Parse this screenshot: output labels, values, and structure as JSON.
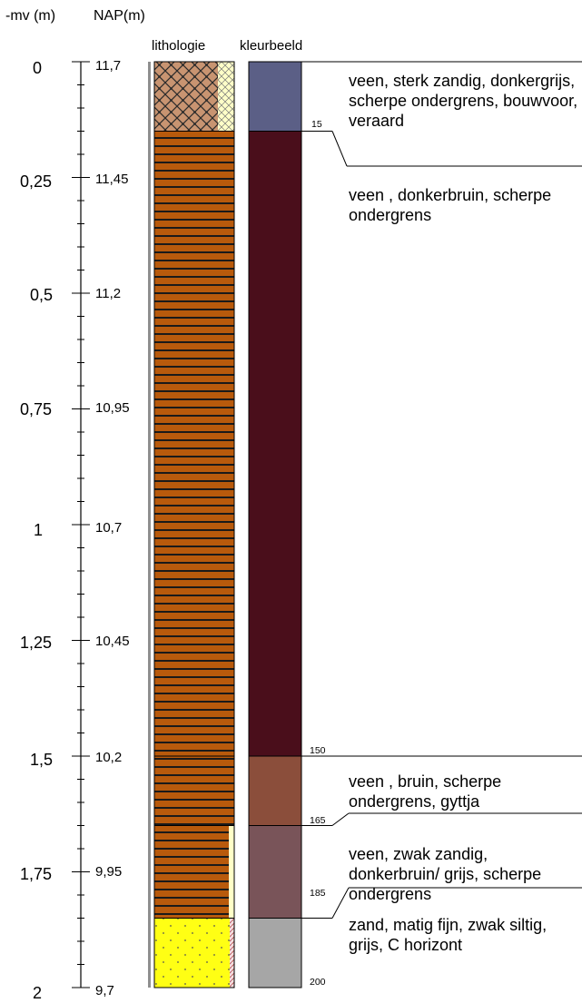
{
  "headers": {
    "mv": "-mv (m)",
    "nap": "NAP(m)",
    "lithology": "lithologie",
    "color": "kleurbeeld"
  },
  "scale": {
    "mv_labels": [
      "0",
      "0,25",
      "0,5",
      "0,75",
      "1",
      "1,25",
      "1,5",
      "1,75",
      "2"
    ],
    "nap_labels": [
      "11,7",
      "11,45",
      "11,2",
      "10,95",
      "10,7",
      "10,45",
      "10,2",
      "9,95",
      "9,7"
    ]
  },
  "layers": [
    {
      "top_cm": 0,
      "bottom_cm": 15,
      "lithology": "peat-sand",
      "color_hex": "#5b5f86",
      "description": "veen, sterk zandig, donkergrijs, scherpe ondergrens, bouwvoor, veraard"
    },
    {
      "top_cm": 15,
      "bottom_cm": 150,
      "lithology": "peat",
      "color_hex": "#4a0e1b",
      "description": "veen , donkerbruin, scherpe ondergrens"
    },
    {
      "top_cm": 150,
      "bottom_cm": 165,
      "lithology": "peat",
      "color_hex": "#8b4e3b",
      "description": "veen , bruin, scherpe ondergrens, gyttja"
    },
    {
      "top_cm": 165,
      "bottom_cm": 185,
      "lithology": "peat-sand-side",
      "color_hex": "#795459",
      "description": "veen, zwak zandig, donkerbruin/ grijs, scherpe ondergrens"
    },
    {
      "top_cm": 185,
      "bottom_cm": 200,
      "lithology": "sand",
      "color_hex": "#a6a6a6",
      "description": "zand, matig fijn, zwak siltig, grijs, C horizont"
    }
  ],
  "boundary_labels": [
    "15",
    "150",
    "165",
    "185",
    "200"
  ]
}
